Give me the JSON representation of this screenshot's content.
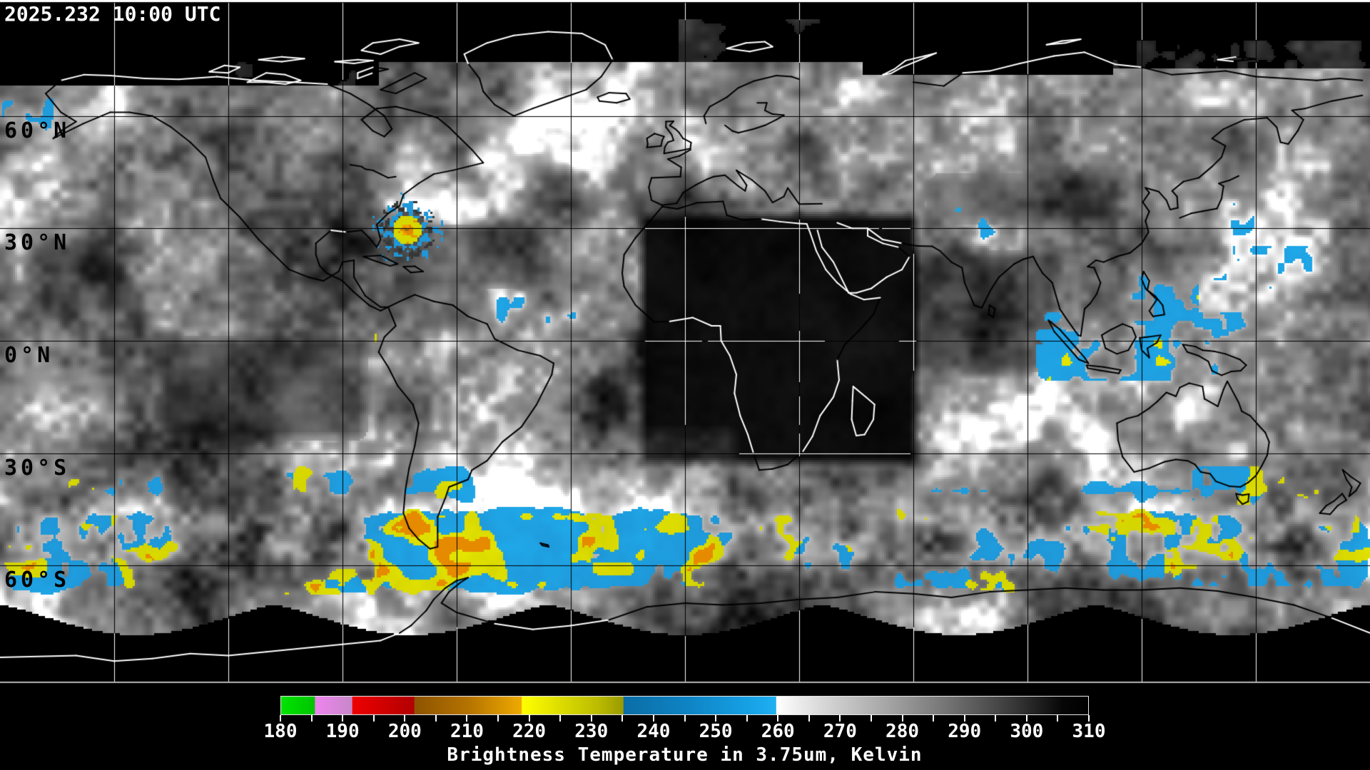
{
  "header": {
    "timestamp": "2025.232 10:00 UTC"
  },
  "map": {
    "projection": "equirectangular",
    "latitude_labels": [
      {
        "text": "60°N",
        "lat": 60
      },
      {
        "text": "30°N",
        "lat": 30
      },
      {
        "text": "0°N",
        "lat": 0
      },
      {
        "text": "30°S",
        "lat": -30
      },
      {
        "text": "60°S",
        "lat": -60
      }
    ],
    "grid": {
      "lat_step_deg": 30,
      "lon_step_deg": 30
    }
  },
  "colorbar": {
    "caption": "Brightness Temperature in 3.75um, Kelvin",
    "min_k": 180,
    "max_k": 310,
    "major_tick_step_k": 10,
    "minor_tick_step_k": 5,
    "tick_labels": [
      "180",
      "190",
      "200",
      "210",
      "220",
      "230",
      "240",
      "250",
      "260",
      "270",
      "280",
      "290",
      "300",
      "310"
    ],
    "stops": [
      [
        180.0,
        "#00e400"
      ],
      [
        185.4,
        "#00c400"
      ],
      [
        185.5,
        "#ee84ee"
      ],
      [
        191.4,
        "#c788c9"
      ],
      [
        191.5,
        "#ee0000"
      ],
      [
        201.4,
        "#b20000"
      ],
      [
        201.5,
        "#8d5400"
      ],
      [
        210.0,
        "#b47200"
      ],
      [
        218.7,
        "#eeaa00"
      ],
      [
        218.8,
        "#ffff00"
      ],
      [
        224.0,
        "#e2e200"
      ],
      [
        231.0,
        "#bcbc00"
      ],
      [
        235.1,
        "#9a9a00"
      ],
      [
        235.2,
        "#0b6da6"
      ],
      [
        246.0,
        "#0f85c6"
      ],
      [
        255.0,
        "#16a0e4"
      ],
      [
        259.7,
        "#1fb0f2"
      ],
      [
        259.8,
        "#ffffff"
      ],
      [
        267.0,
        "#d8d8d8"
      ],
      [
        277.0,
        "#a8a8a8"
      ],
      [
        288.0,
        "#707070"
      ],
      [
        298.0,
        "#383838"
      ],
      [
        306.0,
        "#060606"
      ],
      [
        310.0,
        "#000000"
      ]
    ]
  },
  "palette": {
    "background": "#000000",
    "cold_blue": "#1f97d8",
    "cold_yellow": "#d4d400",
    "cold_orange": "#e68a00",
    "cold_red": "#d43010",
    "cold_green": "#00cc00",
    "grid_on_data": "#000000",
    "grid_on_void": "#ffffff",
    "map_border_top": "#ffffff",
    "map_border_bottom": "#b6b6b6"
  }
}
